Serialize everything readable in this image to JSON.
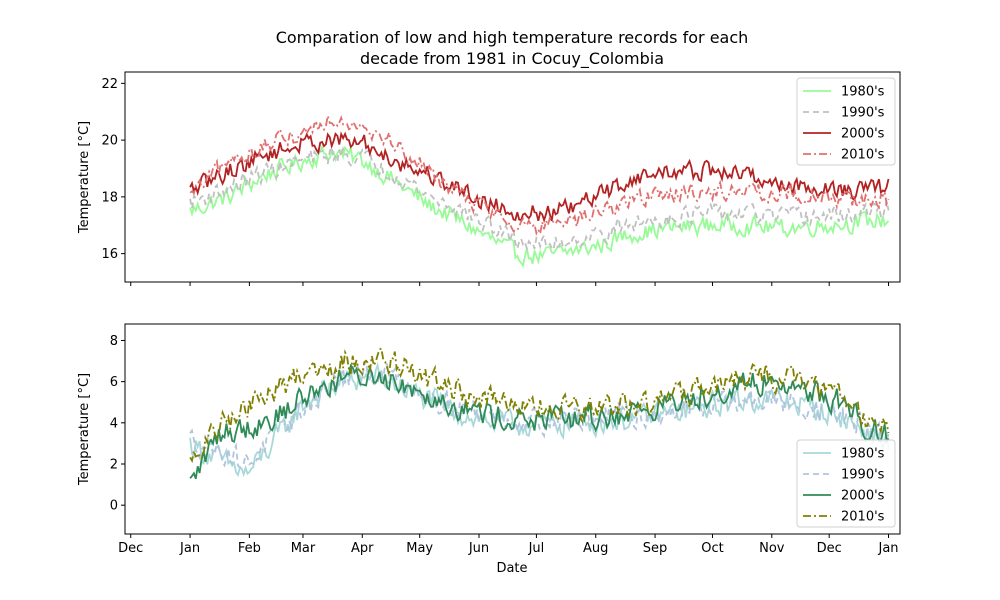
{
  "figure": {
    "title_line1": "Comparation of low and high temperature records for each",
    "title_line2": "decade from 1981 in Cocuy_Colombia",
    "xlabel": "Date"
  },
  "chart_data": [
    {
      "type": "line",
      "panel": "high",
      "ylabel": "Temperature [°C]",
      "ylim": [
        15,
        22.4
      ],
      "yticks": [
        16,
        18,
        20,
        22
      ],
      "xlim": [
        -34,
        371
      ],
      "xticks": [
        -31,
        0,
        31,
        59,
        90,
        120,
        151,
        181,
        212,
        243,
        273,
        304,
        334,
        365
      ],
      "xticklabels": [
        "Dec",
        "Jan",
        "Feb",
        "Mar",
        "Apr",
        "May",
        "Jun",
        "Jul",
        "Aug",
        "Sep",
        "Oct",
        "Nov",
        "Dec",
        "Jan"
      ],
      "legend_position": "top-right",
      "grid": false,
      "series": [
        {
          "name": "1980's",
          "color": "#98fb98",
          "dash": "solid",
          "anchors": [
            [
              0,
              17.5
            ],
            [
              20,
              18.0
            ],
            [
              40,
              18.8
            ],
            [
              60,
              19.3
            ],
            [
              75,
              19.6
            ],
            [
              90,
              19.3
            ],
            [
              110,
              18.4
            ],
            [
              125,
              17.7
            ],
            [
              140,
              17.2
            ],
            [
              155,
              16.6
            ],
            [
              170,
              16.0
            ],
            [
              185,
              15.9
            ],
            [
              200,
              16.1
            ],
            [
              215,
              16.3
            ],
            [
              230,
              16.7
            ],
            [
              250,
              16.9
            ],
            [
              270,
              17.0
            ],
            [
              290,
              17.0
            ],
            [
              310,
              16.9
            ],
            [
              330,
              17.0
            ],
            [
              350,
              17.1
            ],
            [
              365,
              17.2
            ]
          ]
        },
        {
          "name": "1990's",
          "color": "#c0c0c0",
          "dash": "dashed",
          "anchors": [
            [
              0,
              17.8
            ],
            [
              20,
              18.3
            ],
            [
              40,
              18.9
            ],
            [
              60,
              19.3
            ],
            [
              75,
              19.5
            ],
            [
              90,
              19.4
            ],
            [
              110,
              18.7
            ],
            [
              125,
              18.0
            ],
            [
              140,
              17.6
            ],
            [
              155,
              17.0
            ],
            [
              170,
              16.5
            ],
            [
              185,
              16.3
            ],
            [
              200,
              16.5
            ],
            [
              215,
              16.7
            ],
            [
              230,
              17.0
            ],
            [
              250,
              17.3
            ],
            [
              270,
              17.4
            ],
            [
              290,
              17.4
            ],
            [
              310,
              17.3
            ],
            [
              330,
              17.3
            ],
            [
              350,
              17.4
            ],
            [
              365,
              17.6
            ]
          ]
        },
        {
          "name": "2000's",
          "color": "#b22222",
          "dash": "solid",
          "anchors": [
            [
              0,
              18.2
            ],
            [
              20,
              18.9
            ],
            [
              40,
              19.5
            ],
            [
              60,
              19.9
            ],
            [
              75,
              20.0
            ],
            [
              90,
              19.9
            ],
            [
              110,
              19.2
            ],
            [
              125,
              18.8
            ],
            [
              140,
              18.3
            ],
            [
              155,
              17.8
            ],
            [
              170,
              17.5
            ],
            [
              185,
              17.4
            ],
            [
              200,
              17.6
            ],
            [
              215,
              18.1
            ],
            [
              230,
              18.6
            ],
            [
              250,
              18.9
            ],
            [
              270,
              18.9
            ],
            [
              290,
              18.8
            ],
            [
              310,
              18.4
            ],
            [
              330,
              18.3
            ],
            [
              350,
              18.2
            ],
            [
              365,
              18.4
            ]
          ]
        },
        {
          "name": "2010's",
          "color": "#e07070",
          "dash": "dashdot",
          "anchors": [
            [
              0,
              18.0
            ],
            [
              20,
              19.2
            ],
            [
              40,
              19.8
            ],
            [
              60,
              20.3
            ],
            [
              75,
              20.8
            ],
            [
              90,
              20.6
            ],
            [
              110,
              19.7
            ],
            [
              125,
              18.9
            ],
            [
              140,
              18.1
            ],
            [
              155,
              17.6
            ],
            [
              170,
              17.1
            ],
            [
              185,
              16.9
            ],
            [
              200,
              17.1
            ],
            [
              215,
              17.5
            ],
            [
              230,
              17.9
            ],
            [
              250,
              18.1
            ],
            [
              270,
              18.2
            ],
            [
              290,
              18.2
            ],
            [
              310,
              18.1
            ],
            [
              330,
              18.0
            ],
            [
              350,
              17.9
            ],
            [
              365,
              17.9
            ]
          ]
        }
      ]
    },
    {
      "type": "line",
      "panel": "low",
      "ylabel": "Temperature [°C]",
      "ylim": [
        -1.4,
        8.8
      ],
      "yticks": [
        0,
        2,
        4,
        6,
        8
      ],
      "xlim": [
        -34,
        371
      ],
      "xticks": [
        -31,
        0,
        31,
        59,
        90,
        120,
        151,
        181,
        212,
        243,
        273,
        304,
        334,
        365
      ],
      "xticklabels": [
        "Dec",
        "Jan",
        "Feb",
        "Mar",
        "Apr",
        "May",
        "Jun",
        "Jul",
        "Aug",
        "Sep",
        "Oct",
        "Nov",
        "Dec",
        "Jan"
      ],
      "legend_position": "lower-right",
      "grid": false,
      "series": [
        {
          "name": "1980's",
          "color": "#a8d8d8",
          "dash": "solid",
          "anchors": [
            [
              0,
              3.0
            ],
            [
              15,
              2.2
            ],
            [
              30,
              1.5
            ],
            [
              45,
              3.2
            ],
            [
              60,
              5.0
            ],
            [
              80,
              6.0
            ],
            [
              100,
              6.2
            ],
            [
              120,
              5.3
            ],
            [
              140,
              4.5
            ],
            [
              160,
              4.0
            ],
            [
              180,
              3.9
            ],
            [
              200,
              4.0
            ],
            [
              220,
              4.1
            ],
            [
              240,
              4.3
            ],
            [
              260,
              4.6
            ],
            [
              280,
              5.0
            ],
            [
              300,
              5.2
            ],
            [
              320,
              4.9
            ],
            [
              340,
              4.3
            ],
            [
              355,
              3.5
            ],
            [
              365,
              3.0
            ]
          ]
        },
        {
          "name": "1990's",
          "color": "#b0c4de",
          "dash": "dashed",
          "anchors": [
            [
              0,
              3.2
            ],
            [
              15,
              2.8
            ],
            [
              30,
              2.0
            ],
            [
              45,
              3.5
            ],
            [
              60,
              4.8
            ],
            [
              80,
              6.2
            ],
            [
              100,
              6.5
            ],
            [
              120,
              5.6
            ],
            [
              140,
              4.8
            ],
            [
              160,
              4.3
            ],
            [
              180,
              4.1
            ],
            [
              200,
              4.2
            ],
            [
              220,
              4.3
            ],
            [
              240,
              4.4
            ],
            [
              260,
              4.7
            ],
            [
              280,
              5.0
            ],
            [
              300,
              5.1
            ],
            [
              320,
              4.9
            ],
            [
              340,
              4.4
            ],
            [
              355,
              3.6
            ],
            [
              365,
              3.2
            ]
          ]
        },
        {
          "name": "2000's",
          "color": "#2e8b57",
          "dash": "solid",
          "anchors": [
            [
              0,
              1.0
            ],
            [
              15,
              3.5
            ],
            [
              30,
              3.8
            ],
            [
              45,
              4.3
            ],
            [
              60,
              5.3
            ],
            [
              80,
              6.2
            ],
            [
              100,
              6.3
            ],
            [
              120,
              5.6
            ],
            [
              140,
              4.8
            ],
            [
              160,
              4.3
            ],
            [
              180,
              4.1
            ],
            [
              200,
              4.2
            ],
            [
              220,
              4.3
            ],
            [
              240,
              4.7
            ],
            [
              260,
              5.1
            ],
            [
              280,
              5.7
            ],
            [
              300,
              6.0
            ],
            [
              320,
              5.7
            ],
            [
              340,
              5.0
            ],
            [
              355,
              3.8
            ],
            [
              365,
              3.4
            ]
          ]
        },
        {
          "name": "2010's",
          "color": "#808000",
          "dash": "dashdot",
          "anchors": [
            [
              0,
              2.0
            ],
            [
              15,
              3.8
            ],
            [
              30,
              4.8
            ],
            [
              45,
              5.6
            ],
            [
              60,
              6.5
            ],
            [
              80,
              7.0
            ],
            [
              100,
              7.1
            ],
            [
              120,
              6.3
            ],
            [
              140,
              5.5
            ],
            [
              160,
              5.0
            ],
            [
              180,
              4.7
            ],
            [
              200,
              4.6
            ],
            [
              220,
              4.7
            ],
            [
              240,
              5.0
            ],
            [
              260,
              5.4
            ],
            [
              280,
              6.0
            ],
            [
              300,
              6.3
            ],
            [
              320,
              6.0
            ],
            [
              340,
              5.3
            ],
            [
              355,
              4.2
            ],
            [
              365,
              3.8
            ]
          ]
        }
      ]
    }
  ]
}
